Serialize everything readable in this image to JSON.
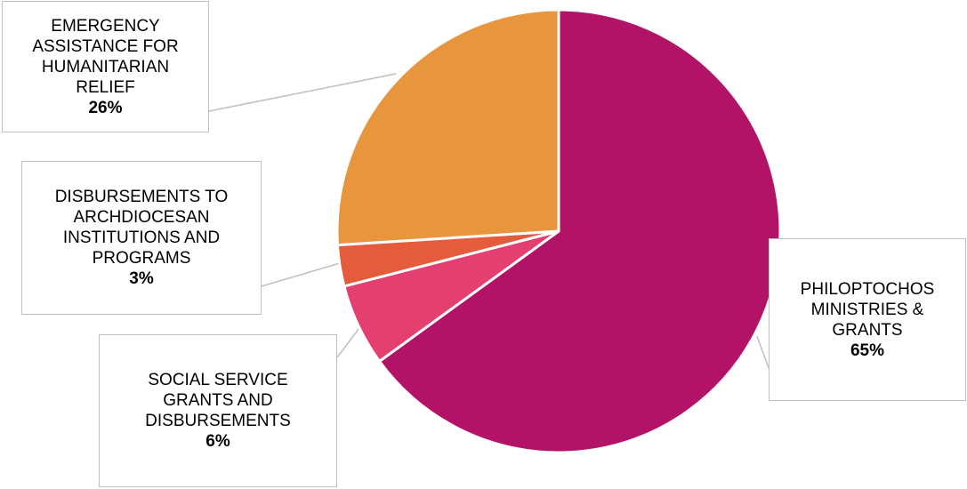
{
  "chart_data": {
    "type": "pie",
    "title": "",
    "slices": [
      {
        "label": "PHILOPTOCHOS\nMINISTRIES &\nGRANTS",
        "percent_label": "65%",
        "value": 65,
        "color": "#b31366"
      },
      {
        "label": "SOCIAL SERVICE\nGRANTS AND\nDISBURSEMENTS",
        "percent_label": "6%",
        "value": 6,
        "color": "#e33f70"
      },
      {
        "label": "DISBURSEMENTS TO\nARCHDIOCESAN\nINSTITUTIONS AND\nPROGRAMS",
        "percent_label": "3%",
        "value": 3,
        "color": "#e45c3c"
      },
      {
        "label": "EMERGENCY\nASSISTANCE FOR\nHUMANITARIAN\nRELIEF",
        "percent_label": "26%",
        "value": 26,
        "color": "#e8963e"
      }
    ]
  }
}
